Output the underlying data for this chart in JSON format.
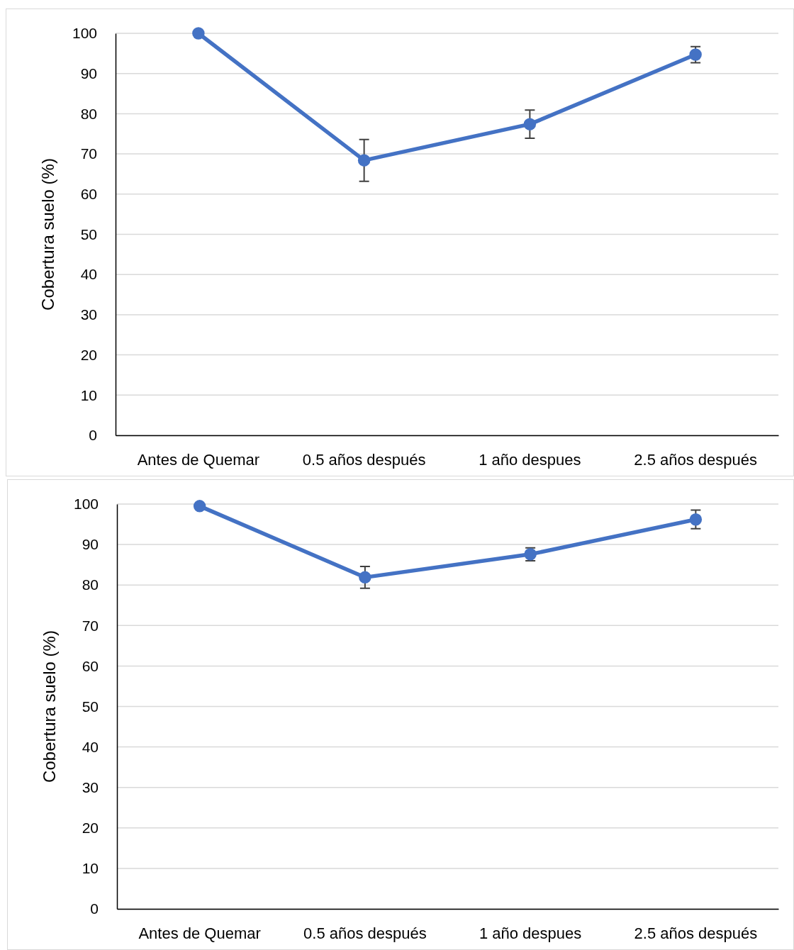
{
  "chart_data": [
    {
      "type": "line",
      "ylabel": "Cobertura suelo (%)",
      "categories": [
        "Antes de Quemar",
        "0.5 años después",
        "1 año despues",
        "2.5 años después"
      ],
      "series": [
        {
          "color": "#4472c4",
          "values": [
            100,
            68.4,
            77.4,
            94.7
          ],
          "errors": [
            null,
            5.2,
            3.5,
            2
          ]
        }
      ],
      "ylim": [
        0,
        100
      ],
      "yticks": [
        0,
        10,
        20,
        30,
        40,
        50,
        60,
        70,
        80,
        90,
        100
      ],
      "grid": "y",
      "marker": "circle",
      "line_style": "solid"
    },
    {
      "type": "line",
      "ylabel": "Cobertura suelo (%)",
      "categories": [
        "Antes de Quemar",
        "0.5 años después",
        "1 año despues",
        "2.5 años después"
      ],
      "series": [
        {
          "color": "#4472c4",
          "values": [
            99.5,
            81.9,
            87.6,
            96.2
          ],
          "errors": [
            null,
            2.7,
            1.6,
            2.3
          ]
        }
      ],
      "ylim": [
        0,
        100
      ],
      "yticks": [
        0,
        10,
        20,
        30,
        40,
        50,
        60,
        70,
        80,
        90,
        100
      ],
      "grid": "y",
      "marker": "circle",
      "line_style": "solid"
    }
  ]
}
